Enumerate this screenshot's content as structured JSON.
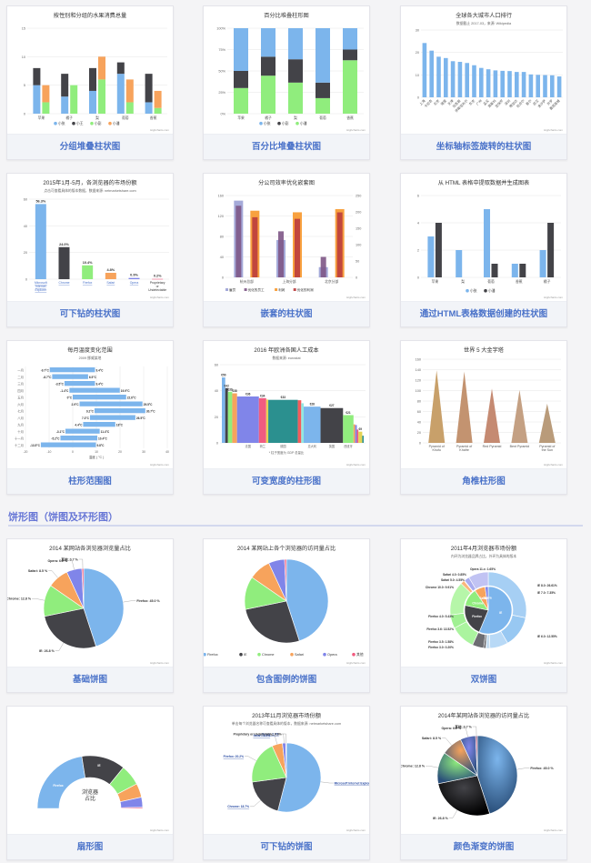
{
  "section": {
    "title": "饼形图（饼图及环形图）"
  },
  "cards": [
    {
      "caption": "分组堆叠柱状图",
      "title": "按性别和分组的水果消费总量"
    },
    {
      "caption": "百分比堆叠柱状图",
      "title": "百分比堆叠柱形图"
    },
    {
      "caption": "坐标轴标签旋转的柱状图",
      "title": "全球各大城市人口排行",
      "subtitle": "数据截止 2017-03，来源: Wikipedia"
    },
    {
      "caption": "可下钻的柱状图",
      "title": "2015年1月-5月，各浏览器的市场份额",
      "subtitle": "点击可查看具体的版本数据，数据来源: netmarketshare.com"
    },
    {
      "caption": "嵌套的柱状图",
      "title": "分公司效率优化嵌套图"
    },
    {
      "caption": "通过HTML表格数据创建的柱状图",
      "title": "从 HTML 表格中提取数据并生成图表"
    },
    {
      "caption": "柱形范围图",
      "title": "每月温度变化范围",
      "subtitle": "2009 挪威某地",
      "xlabel": "温度 ( °C )"
    },
    {
      "caption": "可变宽度的柱形图",
      "title": "2016 年欧洲各国人工成本",
      "subtitle": "数据来源: eurostat",
      "note": "* 柱子宽度为 GDP 总量比"
    },
    {
      "caption": "角椎柱形图",
      "title": "世界 5 大金字塔"
    },
    {
      "caption": "基础饼图",
      "title": "2014 某网站各浏览器浏览量占比"
    },
    {
      "caption": "包含图例的饼图",
      "title": "2014 某网站上各个浏览器的访问量占比"
    },
    {
      "caption": "双饼图",
      "title": "2011年4月浏览器市场份额",
      "subtitle": "内环为浏览器品牌占比，外环为具体的版本"
    },
    {
      "caption": "扇形图",
      "title": "浏览器\n占比"
    },
    {
      "caption": "可下钻的饼图",
      "title": "2013年11月浏览器市场份额",
      "subtitle": "单击每个浏览器名称可查看具体的版本，数据来源: netmarketshare.com"
    },
    {
      "caption": "颜色渐变的饼图",
      "title": "2014年某网站各浏览器的访问量占比"
    }
  ],
  "credit": "Highcharts.com",
  "colors": {
    "blue": "#7cb5ec",
    "dark": "#434348",
    "green": "#90ed7d",
    "orange": "#f7a35c",
    "purple": "#8085e9",
    "pink": "#f15c80",
    "yellow": "#e4d354",
    "teal": "#2b908f",
    "red": "#f45b5b",
    "cyan": "#91e8e1",
    "accent": "#4a72c9"
  },
  "chart_data": [
    {
      "type": "bar",
      "title": "按性别和分组的水果消费总量",
      "categories": [
        "苹果",
        "橘子",
        "梨",
        "葡萄",
        "香蕉"
      ],
      "series": [
        {
          "name": "小张",
          "values": [
            5,
            3,
            4,
            7,
            2
          ]
        },
        {
          "name": "小王",
          "values": [
            3,
            4,
            4,
            2,
            5
          ]
        },
        {
          "name": "小彭",
          "values": [
            2,
            5,
            6,
            2,
            1
          ]
        },
        {
          "name": "小潘",
          "values": [
            3,
            0,
            4,
            4,
            3
          ]
        }
      ],
      "ylim": [
        0,
        15
      ]
    },
    {
      "type": "bar",
      "title": "百分比堆叠柱形图",
      "categories": [
        "苹果",
        "橘子",
        "梨",
        "葡萄",
        "香蕉"
      ],
      "series": [
        {
          "name": "小张",
          "values": [
            5,
            3,
            4,
            7,
            2
          ]
        },
        {
          "name": "小彭",
          "values": [
            2,
            2,
            3,
            2,
            1
          ]
        },
        {
          "name": "小潘",
          "values": [
            3,
            4,
            4,
            2,
            5
          ]
        }
      ],
      "ylim": [
        0,
        100
      ]
    },
    {
      "type": "bar",
      "title": "全球各大城市人口排行",
      "categories": [
        "上海",
        "卡拉奇",
        "北京",
        "德里",
        "天津",
        "拉各斯",
        "伊斯坦布尔",
        "东京",
        "广州",
        "孟买",
        "莫斯科",
        "圣保罗",
        "深圳",
        "雅加达",
        "拉合尔",
        "首尔",
        "武汉",
        "金沙萨",
        "开罗",
        "墨西哥城"
      ],
      "values": [
        24.2,
        20.8,
        18.1,
        17.5,
        16.1,
        15.8,
        15.3,
        14.3,
        13.1,
        12.5,
        12.0,
        11.8,
        11.7,
        11.3,
        11.3,
        10.2,
        10.0,
        9.9,
        9.8,
        9.3
      ],
      "ylim": [
        0,
        30
      ]
    },
    {
      "type": "bar",
      "title": "2015年1月-5月，各浏览器的市场份额",
      "categories": [
        "Microsoft Internet Explorer",
        "Chrome",
        "Firefox",
        "Safari",
        "Opera",
        "Proprietary or Undetectable"
      ],
      "values": [
        56.33,
        24.03,
        10.38,
        4.77,
        0.91,
        0.2
      ],
      "labels": [
        "56.3%",
        "24.0%",
        "10.4%",
        "4.8%",
        "0.9%",
        "0.2%"
      ],
      "ylim": [
        0,
        60
      ]
    },
    {
      "type": "bar",
      "title": "分公司效率优化嵌套图",
      "categories": [
        "杭州总部",
        "上海分部",
        "北京分部"
      ],
      "series": [
        {
          "name": "雇员",
          "values": [
            150,
            73,
            20
          ]
        },
        {
          "name": "优化的员工",
          "values": [
            140,
            90,
            40
          ]
        },
        {
          "name": "利润",
          "values": [
            183.6,
            178.8,
            198.5
          ]
        },
        {
          "name": "优化的利润",
          "values": [
            203.6,
            198.8,
            208.5
          ]
        }
      ]
    },
    {
      "type": "bar",
      "title": "从 HTML 表格中提取数据并生成图表",
      "categories": [
        "苹果",
        "梨",
        "葡萄",
        "香蕉",
        "橘子"
      ],
      "series": [
        {
          "name": "小张",
          "values": [
            3,
            2,
            5,
            1,
            2
          ]
        },
        {
          "name": "小潘",
          "values": [
            4,
            0,
            1,
            1,
            4
          ]
        }
      ],
      "ylim": [
        0,
        6
      ]
    },
    {
      "type": "bar",
      "title": "每月温度变化范围",
      "categories": [
        "一月",
        "二月",
        "三月",
        "四月",
        "五月",
        "六月",
        "七月",
        "八月",
        "九月",
        "十月",
        "十一月",
        "十二月"
      ],
      "series": [
        {
          "name": "温度",
          "values": [
            [
              -9.7,
              9.4
            ],
            [
              -8.7,
              6.5
            ],
            [
              -3.5,
              9.4
            ],
            [
              -1.4,
              19.9
            ],
            [
              0.0,
              22.6
            ],
            [
              2.9,
              29.5
            ],
            [
              9.2,
              30.7
            ],
            [
              7.3,
              26.5
            ],
            [
              4.4,
              18.0
            ],
            [
              -3.1,
              11.4
            ],
            [
              -5.2,
              10.4
            ],
            [
              -13.5,
              9.8
            ]
          ]
        }
      ],
      "xlim": [
        -20,
        40
      ]
    },
    {
      "type": "bar",
      "title": "2016 年欧洲各国人工成本",
      "categories": [
        "挪威",
        "丹麦",
        "比利时",
        "瑞典",
        "法国",
        "荷兰",
        "芬兰",
        "德国",
        "奥地利",
        "爱尔兰",
        "意大利",
        "英国",
        "西班牙",
        "希腊",
        "葡萄牙",
        "捷克",
        "波兰",
        "罗马尼亚"
      ],
      "values": [
        50.2,
        42,
        39.2,
        38,
        35.6,
        34.3,
        33.2,
        33,
        32.7,
        30.4,
        27.8,
        26.7,
        21.3,
        14.2,
        13.7,
        10.2,
        8.6,
        5.5
      ],
      "labels": [
        "€50",
        "€42",
        "€39",
        "€38",
        "€36",
        "€34",
        "€33",
        "€33",
        "€33",
        "€30",
        "€28",
        "€27",
        "€21",
        "€14",
        "€14",
        "€10",
        "€9",
        "€6"
      ],
      "ylim": [
        0,
        60
      ]
    },
    {
      "type": "bar",
      "title": "世界 5 大金字塔",
      "categories": [
        "Pyramid of Khufu",
        "Pyramid of Khafre",
        "Red Pyramid",
        "Bent Pyramid",
        "Pyramid of the Sun"
      ],
      "values": [
        138.8,
        136.4,
        104,
        101.1,
        75
      ],
      "ylim": [
        0,
        160
      ]
    },
    {
      "type": "pie",
      "title": "2014 某网站各浏览器浏览量占比",
      "labels": [
        "Firefox",
        "IE",
        "Chrome",
        "Safari",
        "Opera",
        "其他"
      ],
      "values": [
        45.0,
        26.8,
        12.8,
        8.5,
        6.2,
        0.7
      ],
      "label_text": [
        "Firefox: 45.0 %",
        "IE: 26.8 %",
        "Chrome: 12.8 %",
        "Safari: 8.5 %",
        "Opera: 6.2 %",
        "其他: 0.7 %"
      ]
    },
    {
      "type": "pie",
      "title": "2014 某网站上各个浏览器的访问量占比",
      "labels": [
        "Firefox",
        "IE",
        "Chrome",
        "Safari",
        "Opera",
        "其他"
      ],
      "values": [
        45.0,
        26.8,
        12.8,
        8.5,
        6.2,
        0.7
      ]
    },
    {
      "type": "pie",
      "title": "2011年4月浏览器市场份额",
      "labels": [
        "IE",
        "Firefox",
        "Chrome",
        "Safari",
        "Opera"
      ],
      "values": [
        55.11,
        21.63,
        11.94,
        7.15,
        2.14
      ],
      "outer_labels": [
        "IE 8.0: 26.61%",
        "IE 6.0: 12.55%",
        "IE 7.0: 7.35%",
        "Opera 11.x: 1.65%",
        "Safari 4.0: 0.85%",
        "Safari 5.0: 4.55%",
        "Chrome 10.0: 9.91%",
        "Firefox 4.0: 5.43%",
        "Firefox 3.6: 13.52%",
        "Firefox 3.5: 1.58%",
        "Firefox 3.0: 0.20%"
      ]
    },
    {
      "type": "pie",
      "title": "浏览器占比",
      "labels": [
        "Firefox",
        "IE",
        "Chrome",
        "Safari",
        "Opera",
        "其他"
      ],
      "values": [
        45.0,
        26.8,
        12.8,
        8.5,
        6.2,
        0.7
      ]
    },
    {
      "type": "pie",
      "title": "2013年11月浏览器市场份额",
      "labels": [
        "Microsoft Internet Explorer",
        "Chrome",
        "Firefox",
        "Safari",
        "Opera",
        "Proprietary or Undetectable"
      ],
      "values": [
        53.61,
        18.73,
        20.19,
        4.86,
        1.56,
        0.29
      ],
      "label_text": [
        "Microsoft Internet Explorer: 53.6%",
        "Chrome: 18.7%",
        "Firefox: 20.2%",
        "Safari: 4.9%",
        "Opera: 1.6%",
        "Proprietary or Undetectable: 0.3%"
      ]
    },
    {
      "type": "pie",
      "title": "2014年某网站各浏览器的访问量占比",
      "labels": [
        "Firefox",
        "IE",
        "Chrome",
        "Safari",
        "Opera",
        "其他"
      ],
      "values": [
        45.0,
        26.8,
        12.8,
        8.5,
        6.2,
        0.7
      ],
      "label_text": [
        "Firefox: 45.0 %",
        "IE: 26.8 %",
        "Chrome: 12.8 %",
        "Safari: 8.5 %",
        "Opera: 6.2 %",
        "其他: 0.7 %"
      ]
    }
  ]
}
